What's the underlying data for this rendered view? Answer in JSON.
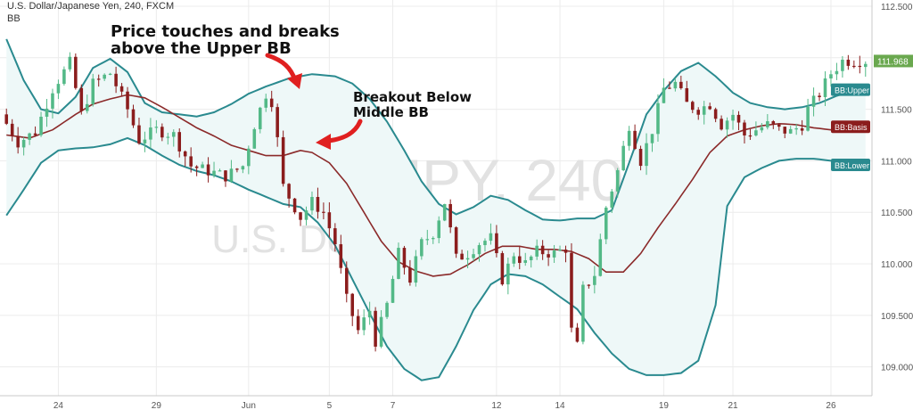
{
  "header": {
    "symbol_title": "U.S. Dollar/Japanese Yen, 240, FXCM",
    "indicator_title": "BB"
  },
  "watermark": {
    "symbol": "USDJPY, 240",
    "name": "U.S. Dollar/Japanese Yen"
  },
  "annotations": {
    "upper_touch": "Price touches and breaks\nabove the Upper BB",
    "middle_break": "Breakout Below\nMiddle BB"
  },
  "colors": {
    "up_candle": "#53b987",
    "down_candle": "#8b1d1d",
    "band_line": "#2a8a8f",
    "band_fill": "#eef8f8",
    "basis_line": "#8b2a2a",
    "arrow": "#e02020",
    "last_price": "#6aa84f"
  },
  "chart_data": {
    "type": "candlestick",
    "title": "U.S. Dollar/Japanese Yen, 240, FXCM",
    "y_axis": {
      "ticks": [
        109.0,
        109.5,
        110.0,
        110.5,
        111.0,
        111.5,
        112.0,
        112.5
      ],
      "tick_labels": [
        "109.000",
        "109.500",
        "110.000",
        "110.500",
        "111.000",
        "111.500",
        "112.000",
        "112.500"
      ],
      "range": [
        108.72,
        112.56
      ]
    },
    "x_axis": {
      "tick_labels": [
        "24",
        "29",
        "Jun",
        "5",
        "7",
        "12",
        "14",
        "19",
        "21",
        "26"
      ],
      "tick_bar_index": [
        9,
        26,
        42,
        56,
        67,
        85,
        96,
        114,
        126,
        143
      ],
      "bar_count": 150
    },
    "grid": true,
    "legend": "right axis labels",
    "series_labels": {
      "upper": "BB:Upper",
      "basis": "BB:Basis",
      "lower": "BB:Lower"
    },
    "last_values": {
      "price": "111.968",
      "upper": 111.69,
      "basis": 111.33,
      "lower": 110.96
    },
    "upper_band": [
      [
        0,
        112.18
      ],
      [
        3,
        111.78
      ],
      [
        6,
        111.5
      ],
      [
        9,
        111.46
      ],
      [
        12,
        111.62
      ],
      [
        15,
        111.9
      ],
      [
        18,
        111.99
      ],
      [
        21,
        111.86
      ],
      [
        24,
        111.56
      ],
      [
        27,
        111.47
      ],
      [
        30,
        111.45
      ],
      [
        33,
        111.43
      ],
      [
        36,
        111.47
      ],
      [
        39,
        111.55
      ],
      [
        42,
        111.65
      ],
      [
        45,
        111.72
      ],
      [
        49,
        111.8
      ],
      [
        53,
        111.84
      ],
      [
        57,
        111.82
      ],
      [
        60,
        111.75
      ],
      [
        63,
        111.6
      ],
      [
        66,
        111.38
      ],
      [
        69,
        111.1
      ],
      [
        72,
        110.8
      ],
      [
        75,
        110.58
      ],
      [
        78,
        110.48
      ],
      [
        81,
        110.55
      ],
      [
        84,
        110.66
      ],
      [
        87,
        110.62
      ],
      [
        90,
        110.52
      ],
      [
        93,
        110.43
      ],
      [
        96,
        110.42
      ],
      [
        99,
        110.44
      ],
      [
        102,
        110.44
      ],
      [
        105,
        110.52
      ],
      [
        108,
        110.98
      ],
      [
        111,
        111.45
      ],
      [
        114,
        111.68
      ],
      [
        117,
        111.87
      ],
      [
        120,
        111.95
      ],
      [
        123,
        111.82
      ],
      [
        126,
        111.66
      ],
      [
        129,
        111.56
      ],
      [
        132,
        111.52
      ],
      [
        135,
        111.5
      ],
      [
        138,
        111.52
      ],
      [
        141,
        111.56
      ],
      [
        144,
        111.63
      ],
      [
        147,
        111.68
      ],
      [
        149,
        111.69
      ]
    ],
    "basis": [
      [
        0,
        111.25
      ],
      [
        4,
        111.22
      ],
      [
        8,
        111.3
      ],
      [
        12,
        111.45
      ],
      [
        15,
        111.55
      ],
      [
        18,
        111.6
      ],
      [
        21,
        111.64
      ],
      [
        24,
        111.61
      ],
      [
        27,
        111.52
      ],
      [
        30,
        111.42
      ],
      [
        33,
        111.32
      ],
      [
        36,
        111.24
      ],
      [
        39,
        111.15
      ],
      [
        42,
        111.1
      ],
      [
        45,
        111.05
      ],
      [
        48,
        111.05
      ],
      [
        51,
        111.1
      ],
      [
        53,
        111.08
      ],
      [
        56,
        110.98
      ],
      [
        59,
        110.78
      ],
      [
        62,
        110.5
      ],
      [
        65,
        110.22
      ],
      [
        68,
        110.02
      ],
      [
        71,
        109.93
      ],
      [
        74,
        109.88
      ],
      [
        77,
        109.9
      ],
      [
        80,
        109.99
      ],
      [
        83,
        110.1
      ],
      [
        86,
        110.17
      ],
      [
        89,
        110.17
      ],
      [
        92,
        110.14
      ],
      [
        95,
        110.14
      ],
      [
        98,
        110.12
      ],
      [
        101,
        110.05
      ],
      [
        104,
        109.92
      ],
      [
        107,
        109.92
      ],
      [
        110,
        110.1
      ],
      [
        113,
        110.35
      ],
      [
        116,
        110.58
      ],
      [
        119,
        110.82
      ],
      [
        122,
        111.08
      ],
      [
        125,
        111.24
      ],
      [
        128,
        111.3
      ],
      [
        131,
        111.34
      ],
      [
        134,
        111.36
      ],
      [
        137,
        111.35
      ],
      [
        140,
        111.32
      ],
      [
        143,
        111.3
      ],
      [
        146,
        111.3
      ],
      [
        149,
        111.33
      ]
    ],
    "lower_band": [
      [
        0,
        110.47
      ],
      [
        3,
        110.72
      ],
      [
        6,
        110.98
      ],
      [
        9,
        111.1
      ],
      [
        12,
        111.12
      ],
      [
        15,
        111.13
      ],
      [
        18,
        111.16
      ],
      [
        21,
        111.22
      ],
      [
        24,
        111.15
      ],
      [
        27,
        111.05
      ],
      [
        30,
        110.96
      ],
      [
        33,
        110.9
      ],
      [
        36,
        110.86
      ],
      [
        39,
        110.8
      ],
      [
        42,
        110.72
      ],
      [
        45,
        110.65
      ],
      [
        48,
        110.58
      ],
      [
        51,
        110.55
      ],
      [
        54,
        110.4
      ],
      [
        57,
        110.18
      ],
      [
        60,
        109.85
      ],
      [
        63,
        109.52
      ],
      [
        66,
        109.2
      ],
      [
        69,
        108.98
      ],
      [
        72,
        108.87
      ],
      [
        75,
        108.9
      ],
      [
        78,
        109.2
      ],
      [
        81,
        109.55
      ],
      [
        84,
        109.8
      ],
      [
        87,
        109.9
      ],
      [
        90,
        109.88
      ],
      [
        93,
        109.8
      ],
      [
        96,
        109.68
      ],
      [
        99,
        109.56
      ],
      [
        102,
        109.33
      ],
      [
        105,
        109.13
      ],
      [
        108,
        108.98
      ],
      [
        111,
        108.92
      ],
      [
        114,
        108.92
      ],
      [
        117,
        108.94
      ],
      [
        120,
        109.06
      ],
      [
        123,
        109.6
      ],
      [
        125,
        110.56
      ],
      [
        128,
        110.84
      ],
      [
        131,
        110.93
      ],
      [
        134,
        111.0
      ],
      [
        137,
        111.02
      ],
      [
        140,
        111.02
      ],
      [
        143,
        111.0
      ],
      [
        146,
        110.98
      ],
      [
        149,
        110.96
      ]
    ],
    "candle_anchors": [
      [
        0,
        111.45
      ],
      [
        3,
        111.18
      ],
      [
        6,
        111.28
      ],
      [
        9,
        111.7
      ],
      [
        12,
        111.95
      ],
      [
        14,
        111.45
      ],
      [
        16,
        111.75
      ],
      [
        19,
        111.85
      ],
      [
        22,
        111.5
      ],
      [
        24,
        111.2
      ],
      [
        27,
        111.3
      ],
      [
        30,
        111.25
      ],
      [
        33,
        110.95
      ],
      [
        36,
        110.9
      ],
      [
        39,
        110.85
      ],
      [
        42,
        110.95
      ],
      [
        44,
        111.35
      ],
      [
        46,
        111.65
      ],
      [
        47,
        111.58
      ],
      [
        48,
        111.2
      ],
      [
        49,
        110.75
      ],
      [
        52,
        110.45
      ],
      [
        54,
        110.6
      ],
      [
        56,
        110.5
      ],
      [
        58,
        110.2
      ],
      [
        60,
        109.65
      ],
      [
        62,
        109.35
      ],
      [
        64,
        109.55
      ],
      [
        65,
        109.25
      ],
      [
        67,
        109.6
      ],
      [
        69,
        110.1
      ],
      [
        71,
        109.85
      ],
      [
        73,
        110.2
      ],
      [
        75,
        110.3
      ],
      [
        77,
        110.6
      ],
      [
        79,
        110.05
      ],
      [
        81,
        110.1
      ],
      [
        83,
        110.2
      ],
      [
        85,
        110.25
      ],
      [
        87,
        109.85
      ],
      [
        89,
        110.1
      ],
      [
        91,
        110.0
      ],
      [
        93,
        110.12
      ],
      [
        96,
        110.1
      ],
      [
        98,
        110.15
      ],
      [
        99,
        109.35
      ],
      [
        100,
        109.2
      ],
      [
        101,
        109.75
      ],
      [
        103,
        109.9
      ],
      [
        105,
        110.55
      ],
      [
        107,
        110.9
      ],
      [
        109,
        111.35
      ],
      [
        111,
        111.0
      ],
      [
        113,
        111.3
      ],
      [
        115,
        111.7
      ],
      [
        117,
        111.75
      ],
      [
        119,
        111.55
      ],
      [
        121,
        111.5
      ],
      [
        123,
        111.55
      ],
      [
        125,
        111.35
      ],
      [
        127,
        111.45
      ],
      [
        129,
        111.25
      ],
      [
        131,
        111.3
      ],
      [
        133,
        111.35
      ],
      [
        135,
        111.3
      ],
      [
        137,
        111.28
      ],
      [
        139,
        111.35
      ],
      [
        140,
        111.5
      ],
      [
        142,
        111.65
      ],
      [
        144,
        111.85
      ],
      [
        146,
        111.97
      ]
    ]
  }
}
